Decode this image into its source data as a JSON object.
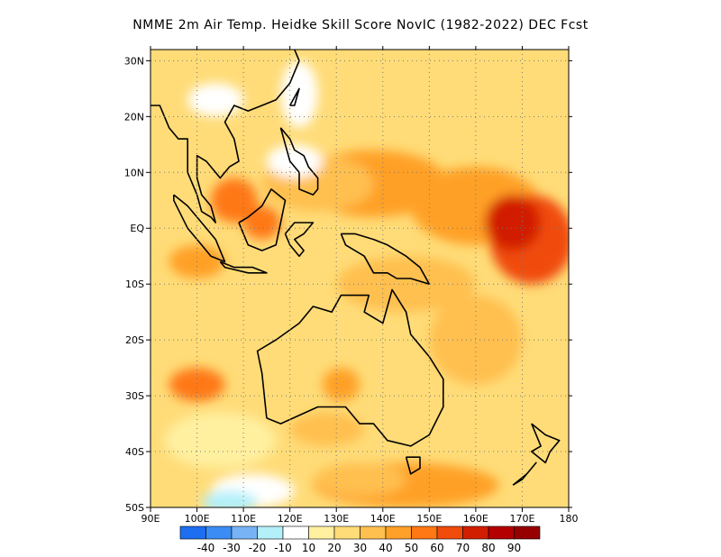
{
  "title": "NMME  2m Air Temp. Heidke Skill Score NovIC (1982-2022) DEC Fcst",
  "map": {
    "lon_range": [
      90,
      180
    ],
    "lat_range": [
      -50,
      32
    ],
    "lon_ticks": [
      {
        "value": 90,
        "label": "90E"
      },
      {
        "value": 100,
        "label": "100E"
      },
      {
        "value": 110,
        "label": "110E"
      },
      {
        "value": 120,
        "label": "120E"
      },
      {
        "value": 130,
        "label": "130E"
      },
      {
        "value": 140,
        "label": "140E"
      },
      {
        "value": 150,
        "label": "150E"
      },
      {
        "value": 160,
        "label": "160E"
      },
      {
        "value": 170,
        "label": "170E"
      },
      {
        "value": 180,
        "label": "180"
      }
    ],
    "lat_ticks": [
      {
        "value": 30,
        "label": "30N"
      },
      {
        "value": 20,
        "label": "20N"
      },
      {
        "value": 10,
        "label": "10N"
      },
      {
        "value": 0,
        "label": "EQ"
      },
      {
        "value": -10,
        "label": "10S"
      },
      {
        "value": -20,
        "label": "20S"
      },
      {
        "value": -30,
        "label": "30S"
      },
      {
        "value": -40,
        "label": "40S"
      },
      {
        "value": -50,
        "label": "50S"
      }
    ]
  },
  "colorbar": {
    "colors": [
      "#1e6ef0",
      "#3c8cf5",
      "#78b4f5",
      "#b4f0fa",
      "#ffffff",
      "#fff0a0",
      "#ffdc78",
      "#ffc050",
      "#ffa028",
      "#ff7814",
      "#f04b0a",
      "#d21e00",
      "#b40000",
      "#960000"
    ],
    "labels": [
      "-40",
      "-30",
      "-20",
      "-10",
      "10",
      "20",
      "30",
      "40",
      "50",
      "60",
      "70",
      "80",
      "90"
    ]
  }
}
